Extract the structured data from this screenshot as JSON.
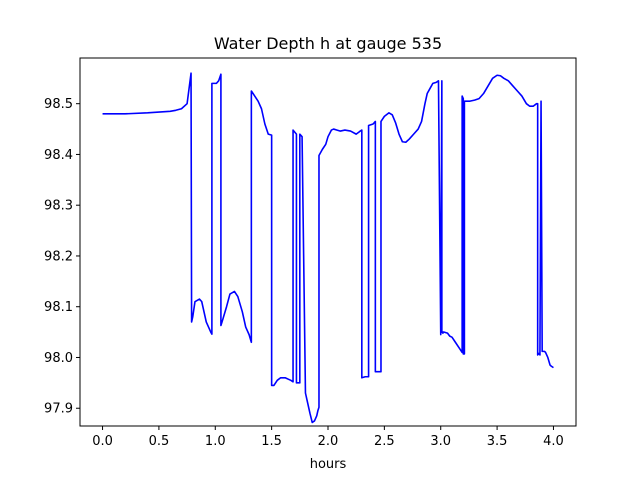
{
  "chart_data": {
    "type": "line",
    "title": "Water Depth h at gauge 535",
    "xlabel": "hours",
    "ylabel": "",
    "xlim": [
      -0.2,
      4.2
    ],
    "ylim": [
      97.865,
      98.59
    ],
    "xticks": [
      0.0,
      0.5,
      1.0,
      1.5,
      2.0,
      2.5,
      3.0,
      3.5,
      4.0
    ],
    "xtick_labels": [
      "0.0",
      "0.5",
      "1.0",
      "1.5",
      "2.0",
      "2.5",
      "3.0",
      "3.5",
      "4.0"
    ],
    "yticks": [
      97.9,
      98.0,
      98.1,
      98.2,
      98.3,
      98.4,
      98.5
    ],
    "ytick_labels": [
      "97.9",
      "98.0",
      "98.1",
      "98.2",
      "98.3",
      "98.4",
      "98.5"
    ],
    "grid": false,
    "series": [
      {
        "color": "#0000ff",
        "x": [
          0.0,
          0.2,
          0.4,
          0.6,
          0.65,
          0.7,
          0.75,
          0.785,
          0.79,
          0.8,
          0.82,
          0.86,
          0.88,
          0.92,
          0.96,
          0.97,
          0.97,
          1.0,
          1.01,
          1.03,
          1.05,
          1.05,
          1.06,
          1.1,
          1.13,
          1.17,
          1.2,
          1.24,
          1.27,
          1.3,
          1.32,
          1.32,
          1.35,
          1.38,
          1.41,
          1.44,
          1.47,
          1.5,
          1.5,
          1.52,
          1.55,
          1.58,
          1.62,
          1.65,
          1.67,
          1.69,
          1.69,
          1.72,
          1.72,
          1.74,
          1.75,
          1.75,
          1.77,
          1.8,
          1.82,
          1.84,
          1.86,
          1.88,
          1.9,
          1.91,
          1.92,
          1.92,
          1.95,
          1.98,
          2.0,
          2.03,
          2.05,
          2.08,
          2.11,
          2.15,
          2.2,
          2.25,
          2.28,
          2.3,
          2.3,
          2.33,
          2.35,
          2.36,
          2.36,
          2.4,
          2.42,
          2.42,
          2.47,
          2.47,
          2.5,
          2.54,
          2.57,
          2.6,
          2.63,
          2.66,
          2.69,
          2.72,
          2.76,
          2.8,
          2.83,
          2.86,
          2.88,
          2.91,
          2.93,
          2.96,
          2.98,
          3.0,
          3.0,
          3.01,
          3.01,
          3.02,
          3.02,
          3.03,
          3.06,
          3.08,
          3.1,
          3.13,
          3.16,
          3.19,
          3.19,
          3.2,
          3.2,
          3.21,
          3.21,
          3.24,
          3.26,
          3.3,
          3.34,
          3.38,
          3.42,
          3.46,
          3.5,
          3.53,
          3.56,
          3.6,
          3.64,
          3.68,
          3.72,
          3.76,
          3.79,
          3.82,
          3.85,
          3.86,
          3.86,
          3.87,
          3.88,
          3.89,
          3.89,
          3.9,
          3.9,
          3.92,
          3.93,
          3.95,
          3.97,
          3.98,
          4.0
        ],
        "y": [
          98.48,
          98.48,
          98.482,
          98.485,
          98.487,
          98.49,
          98.5,
          98.56,
          98.07,
          98.08,
          98.11,
          98.115,
          98.11,
          98.07,
          98.05,
          98.046,
          98.54,
          98.54,
          98.54,
          98.545,
          98.558,
          98.063,
          98.07,
          98.1,
          98.125,
          98.13,
          98.12,
          98.09,
          98.06,
          98.045,
          98.03,
          98.525,
          98.515,
          98.505,
          98.49,
          98.46,
          98.44,
          98.438,
          97.945,
          97.945,
          97.955,
          97.96,
          97.96,
          97.957,
          97.955,
          97.952,
          98.448,
          98.44,
          97.95,
          97.95,
          97.95,
          98.44,
          98.435,
          97.93,
          97.91,
          97.89,
          97.872,
          97.875,
          97.885,
          97.895,
          97.902,
          98.398,
          98.41,
          98.42,
          98.435,
          98.448,
          98.45,
          98.448,
          98.446,
          98.448,
          98.446,
          98.44,
          98.445,
          98.448,
          97.96,
          97.962,
          97.962,
          97.962,
          98.457,
          98.46,
          98.465,
          97.972,
          97.972,
          98.465,
          98.475,
          98.482,
          98.478,
          98.462,
          98.44,
          98.425,
          98.424,
          98.43,
          98.44,
          98.45,
          98.465,
          98.5,
          98.52,
          98.532,
          98.54,
          98.542,
          98.545,
          98.045,
          98.045,
          98.545,
          98.05,
          98.048,
          98.05,
          98.05,
          98.048,
          98.042,
          98.04,
          98.03,
          98.02,
          98.01,
          98.515,
          98.51,
          98.007,
          98.007,
          98.505,
          98.505,
          98.505,
          98.507,
          98.51,
          98.52,
          98.535,
          98.55,
          98.556,
          98.555,
          98.55,
          98.545,
          98.535,
          98.525,
          98.515,
          98.5,
          98.495,
          98.495,
          98.5,
          98.5,
          98.005,
          98.008,
          98.005,
          98.505,
          98.505,
          98.012,
          98.012,
          98.012,
          98.01,
          98.0,
          97.985,
          97.983,
          97.98
        ]
      }
    ]
  }
}
